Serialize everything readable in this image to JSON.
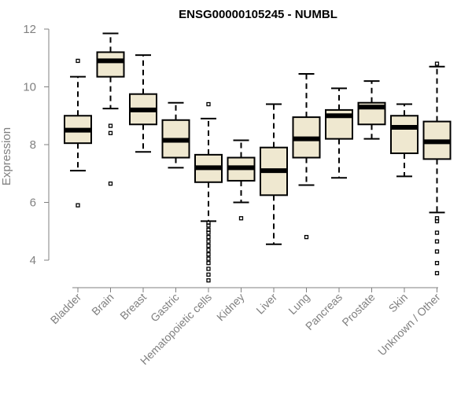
{
  "chart_data": {
    "type": "boxplot",
    "title": "ENSG00000105245 - NUMBL",
    "xlabel": "",
    "ylabel": "Expression",
    "ylim": [
      3.2,
      12.05
    ],
    "yticks": [
      4,
      6,
      8,
      10,
      12
    ],
    "ytick_labels": [
      "4",
      "6",
      "8",
      "10",
      "12"
    ],
    "grid": false,
    "legend": "none",
    "colors": {
      "box_fill": "#efe8d0",
      "box_stroke": "#000000",
      "axis": "#808080",
      "tick_text": "#808080"
    },
    "categories": [
      "Bladder",
      "Brain",
      "Breast",
      "Gastric",
      "Hematopoietic cells",
      "Kidney",
      "Liver",
      "Lung",
      "Pancreas",
      "Prostate",
      "Skin",
      "Unknown / Other"
    ],
    "boxes": [
      {
        "name": "Bladder",
        "whisker_low": 7.1,
        "q1": 8.05,
        "median": 8.5,
        "q3": 9.0,
        "whisker_high": 10.35,
        "outliers": [
          5.9,
          10.9
        ]
      },
      {
        "name": "Brain",
        "whisker_low": 9.25,
        "q1": 10.35,
        "median": 10.9,
        "q3": 11.2,
        "whisker_high": 11.85,
        "outliers": [
          6.65,
          8.4,
          8.65
        ]
      },
      {
        "name": "Breast",
        "whisker_low": 7.75,
        "q1": 8.7,
        "median": 9.2,
        "q3": 9.75,
        "whisker_high": 11.1,
        "outliers": []
      },
      {
        "name": "Gastric",
        "whisker_low": 7.2,
        "q1": 7.55,
        "median": 8.15,
        "q3": 8.85,
        "whisker_high": 9.45,
        "outliers": []
      },
      {
        "name": "Hematopoietic cells",
        "whisker_low": 5.35,
        "q1": 6.7,
        "median": 7.2,
        "q3": 7.65,
        "whisker_high": 8.9,
        "outliers": [
          3.3,
          3.5,
          3.7,
          3.9,
          4.05,
          4.2,
          4.35,
          4.5,
          4.65,
          4.8,
          4.95,
          5.05,
          5.2,
          5.3,
          9.4
        ]
      },
      {
        "name": "Kidney",
        "whisker_low": 6.0,
        "q1": 6.75,
        "median": 7.2,
        "q3": 7.55,
        "whisker_high": 8.15,
        "outliers": [
          5.45
        ]
      },
      {
        "name": "Liver",
        "whisker_low": 4.55,
        "q1": 6.25,
        "median": 7.1,
        "q3": 7.9,
        "whisker_high": 9.4,
        "outliers": []
      },
      {
        "name": "Lung",
        "whisker_low": 6.6,
        "q1": 7.55,
        "median": 8.2,
        "q3": 8.95,
        "whisker_high": 10.45,
        "outliers": [
          4.8
        ]
      },
      {
        "name": "Pancreas",
        "whisker_low": 6.85,
        "q1": 8.2,
        "median": 9.0,
        "q3": 9.2,
        "whisker_high": 9.95,
        "outliers": []
      },
      {
        "name": "Prostate",
        "whisker_low": 8.2,
        "q1": 8.7,
        "median": 9.3,
        "q3": 9.45,
        "whisker_high": 10.2,
        "outliers": []
      },
      {
        "name": "Skin",
        "whisker_low": 6.9,
        "q1": 7.7,
        "median": 8.6,
        "q3": 9.0,
        "whisker_high": 9.4,
        "outliers": []
      },
      {
        "name": "Unknown / Other",
        "whisker_low": 5.65,
        "q1": 7.5,
        "median": 8.1,
        "q3": 8.8,
        "whisker_high": 10.7,
        "outliers": [
          3.55,
          3.9,
          4.3,
          4.65,
          4.95,
          5.35,
          5.45,
          10.8
        ]
      }
    ]
  }
}
